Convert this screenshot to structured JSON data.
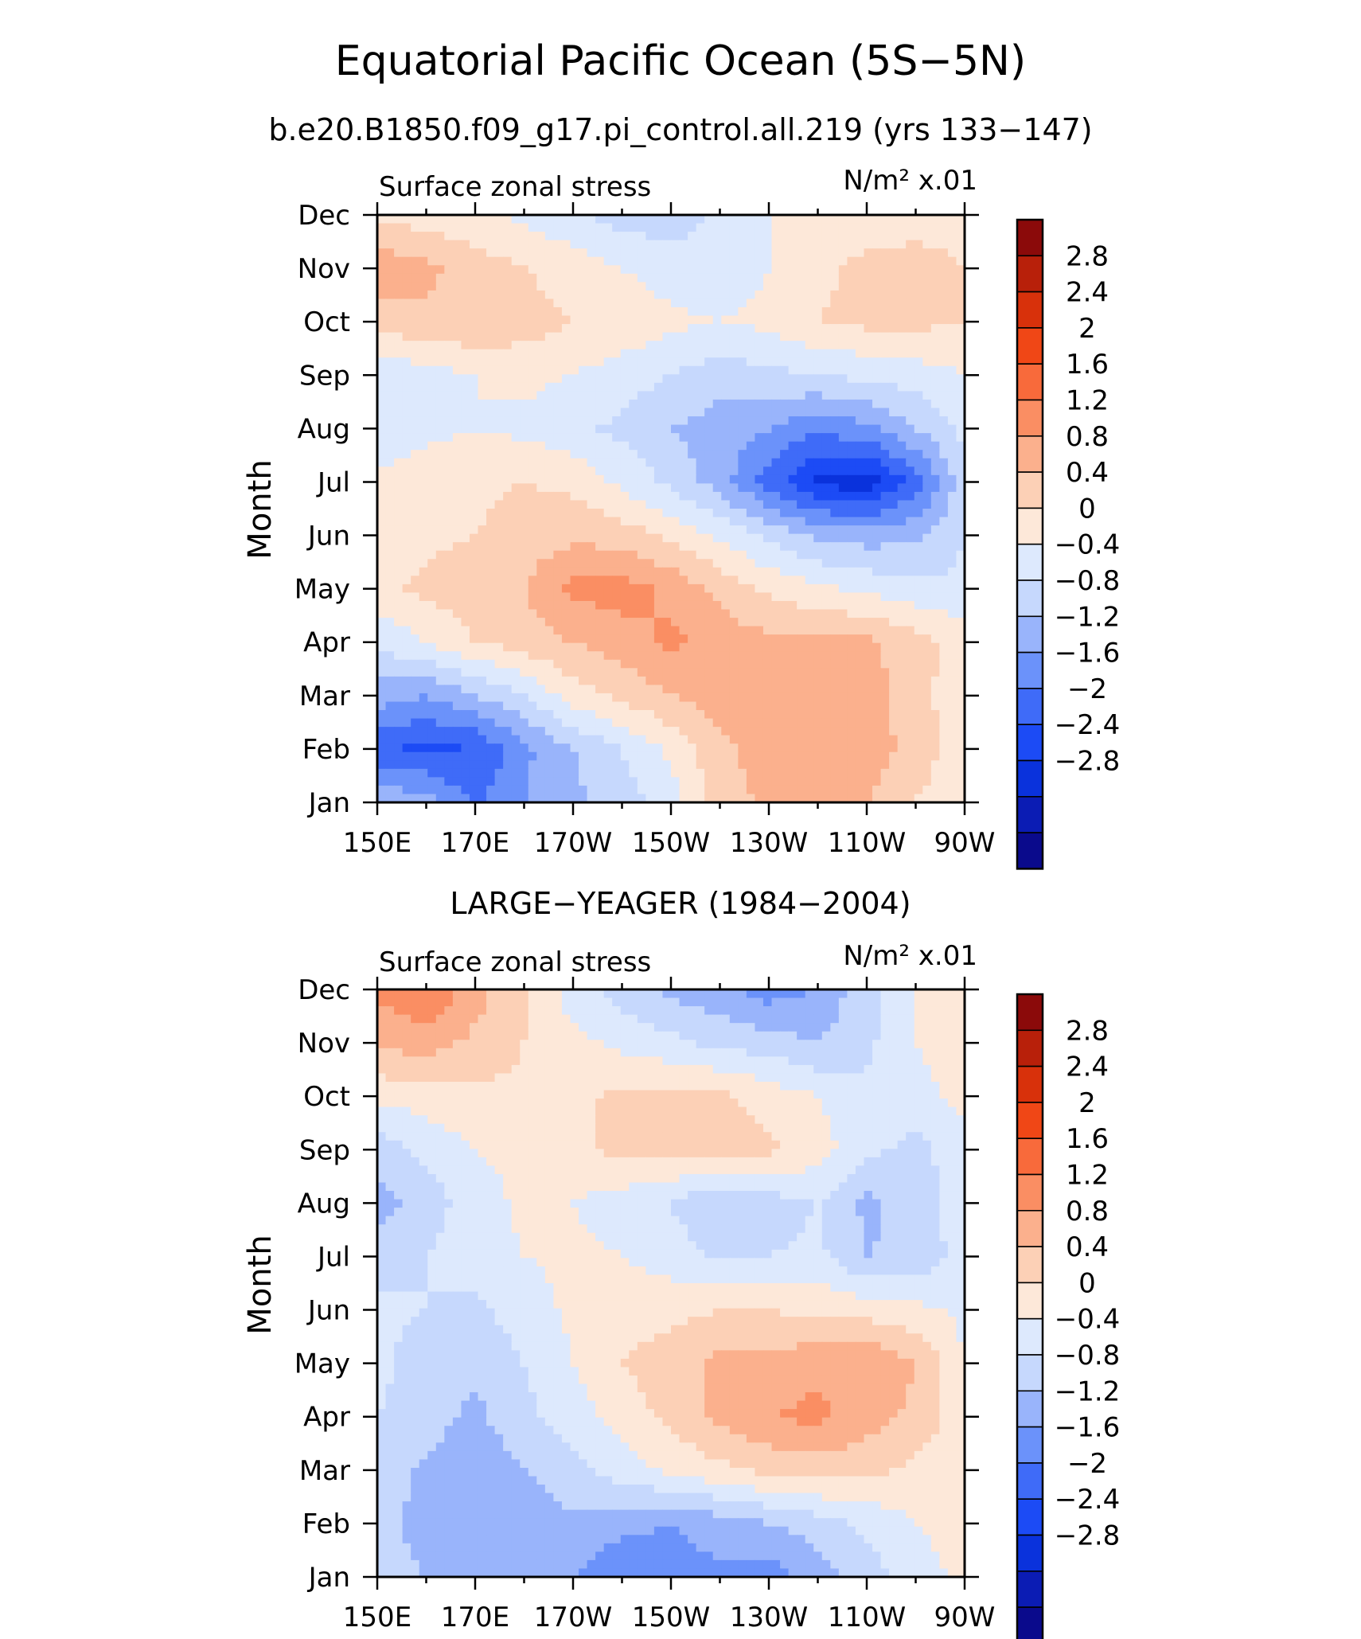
{
  "title": "Equatorial Pacific Ocean (5S−5N)",
  "subtitle": "b.e20.B1850.f09_g17.pi_control.all.219 (yrs 133−147)",
  "colors": {
    "levels": [
      "#0a0a8c",
      "#0b1cb4",
      "#0a32dc",
      "#1c4bf5",
      "#3f6bf8",
      "#6b92fa",
      "#99b4fb",
      "#c6d8fd",
      "#dde9fd",
      "#fde8d9",
      "#fcd0b6",
      "#fbb08d",
      "#fa8e63",
      "#f86a3b",
      "#f04716",
      "#d8310b",
      "#b8200a",
      "#8b0a0a"
    ]
  },
  "colorbar": {
    "labels": [
      "2.8",
      "2.4",
      "2",
      "1.6",
      "1.2",
      "0.8",
      "0.4",
      "0",
      "−0.4",
      "−0.8",
      "−1.2",
      "−1.6",
      "−2",
      "−2.4",
      "−2.8"
    ]
  },
  "chart_data": [
    {
      "type": "heatmap",
      "panel_title": "",
      "field_label": "Surface zonal stress",
      "units": "N/m² x.01",
      "ylabel": "Month",
      "x_ticks": [
        "150E",
        "170E",
        "170W",
        "150W",
        "130W",
        "110W",
        "90W"
      ],
      "y_ticks": [
        "Jan",
        "Feb",
        "Mar",
        "Apr",
        "May",
        "Jun",
        "Jul",
        "Aug",
        "Sep",
        "Oct",
        "Nov",
        "Dec"
      ],
      "x_values_deg_east": [
        150,
        160,
        170,
        180,
        190,
        200,
        210,
        220,
        230,
        240,
        250,
        260,
        270
      ],
      "values": [
        [
          -0.9,
          -1.0,
          -1.7,
          -1.2,
          -0.9,
          -0.6,
          -0.2,
          0.6,
          0.9,
          0.8,
          0.8,
          0.4,
          0.1
        ],
        [
          -1.9,
          -2.1,
          -2.0,
          -1.3,
          -0.8,
          -0.4,
          0.1,
          0.7,
          1.0,
          1.0,
          1.1,
          0.6,
          0.2
        ],
        [
          -1.0,
          -1.2,
          -0.8,
          -0.4,
          0.2,
          0.5,
          0.8,
          1.0,
          1.0,
          1.0,
          1.0,
          0.5,
          0.2
        ],
        [
          -0.3,
          0.0,
          0.4,
          0.6,
          0.8,
          1.0,
          1.3,
          1.0,
          0.9,
          0.9,
          0.9,
          0.6,
          0.2
        ],
        [
          0.3,
          0.5,
          0.6,
          0.8,
          1.3,
          1.4,
          1.1,
          0.7,
          0.3,
          0.1,
          -0.1,
          -0.3,
          -0.3
        ],
        [
          0.2,
          0.3,
          0.4,
          0.6,
          0.7,
          0.6,
          0.3,
          -0.1,
          -0.5,
          -0.9,
          -1.0,
          -0.9,
          -0.4
        ],
        [
          0.1,
          0.2,
          0.3,
          0.4,
          0.3,
          -0.1,
          -0.5,
          -1.0,
          -1.8,
          -2.5,
          -2.7,
          -1.8,
          -0.5
        ],
        [
          -0.3,
          -0.1,
          0.0,
          -0.1,
          -0.3,
          -0.5,
          -0.8,
          -1.0,
          -1.2,
          -1.5,
          -1.3,
          -0.8,
          -0.3
        ],
        [
          -0.3,
          -0.2,
          0.0,
          0.1,
          0.0,
          -0.2,
          -0.4,
          -0.6,
          -0.5,
          -0.4,
          -0.3,
          -0.2,
          0.0
        ],
        [
          0.6,
          0.7,
          0.8,
          0.6,
          0.4,
          0.3,
          0.1,
          0.0,
          0.1,
          0.4,
          0.5,
          0.5,
          0.4
        ],
        [
          1.1,
          0.9,
          0.6,
          0.4,
          0.2,
          0.0,
          -0.2,
          -0.3,
          0.0,
          0.3,
          0.5,
          0.5,
          0.4
        ],
        [
          0.3,
          0.2,
          0.1,
          -0.1,
          -0.3,
          -0.6,
          -0.6,
          -0.3,
          0.0,
          0.2,
          0.2,
          0.3,
          0.3
        ]
      ]
    },
    {
      "type": "heatmap",
      "panel_title": "LARGE−YEAGER (1984−2004)",
      "field_label": "Surface zonal stress",
      "units": "N/m² x.01",
      "ylabel": "Month",
      "x_ticks": [
        "150E",
        "170E",
        "170W",
        "150W",
        "130W",
        "110W",
        "90W"
      ],
      "y_ticks": [
        "Jan",
        "Feb",
        "Mar",
        "Apr",
        "May",
        "Jun",
        "Jul",
        "Aug",
        "Sep",
        "Oct",
        "Nov",
        "Dec"
      ],
      "x_values_deg_east": [
        150,
        160,
        170,
        180,
        190,
        200,
        210,
        220,
        230,
        240,
        250,
        260,
        270
      ],
      "values": [
        [
          -0.6,
          -0.8,
          -1.0,
          -1.0,
          -1.2,
          -1.5,
          -1.4,
          -1.3,
          -1.4,
          -1.0,
          -0.6,
          -0.2,
          0.1
        ],
        [
          -0.6,
          -1.0,
          -1.2,
          -1.1,
          -0.9,
          -1.1,
          -1.2,
          -1.0,
          -0.8,
          -0.6,
          -0.3,
          0.0,
          0.2
        ],
        [
          -0.5,
          -0.9,
          -1.1,
          -0.8,
          -0.5,
          -0.2,
          0.1,
          0.3,
          0.5,
          0.6,
          0.5,
          0.3,
          0.1
        ],
        [
          -0.4,
          -0.6,
          -0.9,
          -0.5,
          -0.2,
          0.2,
          0.5,
          0.9,
          1.2,
          1.3,
          1.0,
          0.7,
          0.1
        ],
        [
          -0.3,
          -0.6,
          -0.7,
          -0.4,
          0.0,
          0.4,
          0.6,
          0.9,
          0.9,
          1.1,
          1.2,
          0.8,
          0.0
        ],
        [
          -0.3,
          -0.4,
          -0.5,
          -0.2,
          0.1,
          0.2,
          0.3,
          0.4,
          0.4,
          0.3,
          0.2,
          0.1,
          -0.1
        ],
        [
          -0.6,
          -0.4,
          -0.2,
          0.0,
          0.1,
          0.0,
          -0.2,
          -0.5,
          -0.4,
          -0.3,
          -0.8,
          -0.7,
          -0.2
        ],
        [
          -1.0,
          -0.6,
          -0.2,
          0.1,
          0.0,
          -0.2,
          -0.4,
          -0.8,
          -0.6,
          -0.4,
          -0.9,
          -0.6,
          -0.2
        ],
        [
          -0.6,
          -0.3,
          0.0,
          0.1,
          0.3,
          0.5,
          0.5,
          0.6,
          0.5,
          0.2,
          -0.3,
          -0.5,
          -0.2
        ],
        [
          0.1,
          0.2,
          0.3,
          0.3,
          0.3,
          0.5,
          0.5,
          0.5,
          0.2,
          0.0,
          -0.3,
          -0.2,
          0.2
        ],
        [
          0.9,
          1.0,
          0.7,
          0.4,
          0.1,
          -0.1,
          -0.3,
          -0.5,
          -0.6,
          -0.8,
          -0.5,
          0.0,
          0.3
        ],
        [
          1.3,
          1.6,
          1.0,
          0.4,
          -0.2,
          -0.6,
          -0.9,
          -1.1,
          -1.4,
          -1.2,
          -0.5,
          0.0,
          0.3
        ]
      ]
    }
  ]
}
